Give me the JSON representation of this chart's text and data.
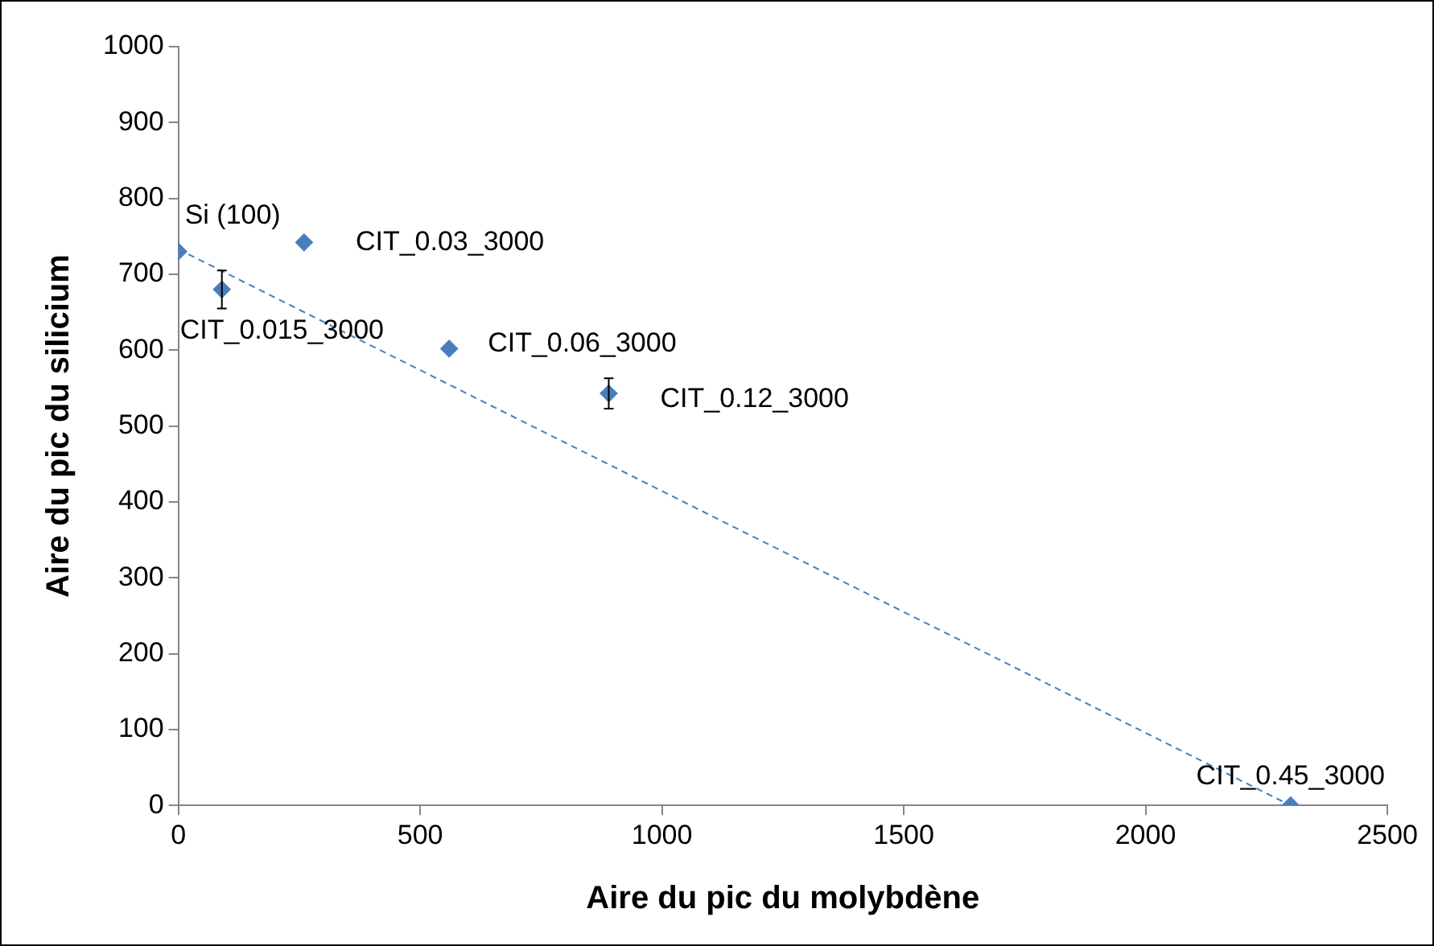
{
  "chart_data": {
    "type": "scatter",
    "xlabel": "Aire du pic du molybdène",
    "ylabel": "Aire du pic du silicium",
    "series": [
      {
        "color": "#4a7ebb",
        "x": [
          0,
          90,
          260,
          560,
          890,
          2300
        ],
        "values": [
          730,
          680,
          742,
          602,
          543,
          0
        ],
        "errors": [
          null,
          25,
          null,
          null,
          20,
          null
        ],
        "marker": "diamond"
      },
      {
        "type": "line",
        "color": "#4a7ebb",
        "x": [
          0,
          2300
        ],
        "values": [
          733,
          0
        ],
        "line_style": "dashed",
        "marker": "none"
      }
    ],
    "xlim": [
      0,
      2500
    ],
    "xticks": [
      0,
      500,
      1000,
      1500,
      2000,
      2500
    ],
    "ylim": [
      0,
      1000
    ],
    "yticks": [
      0,
      100,
      200,
      300,
      400,
      500,
      600,
      700,
      800,
      900,
      1000
    ],
    "grid": false,
    "legend": false,
    "annotations": [
      {
        "text": "Si (100)",
        "x": 0,
        "y": 730
      },
      {
        "text": "CIT_0.015_3000",
        "x": 90,
        "y": 680
      },
      {
        "text": "CIT_0.03_3000",
        "x": 260,
        "y": 742
      },
      {
        "text": "CIT_0.06_3000",
        "x": 560,
        "y": 602
      },
      {
        "text": "CIT_0.12_3000",
        "x": 890,
        "y": 543
      },
      {
        "text": "CIT_0.45_3000",
        "x": 2300,
        "y": 0
      }
    ]
  }
}
